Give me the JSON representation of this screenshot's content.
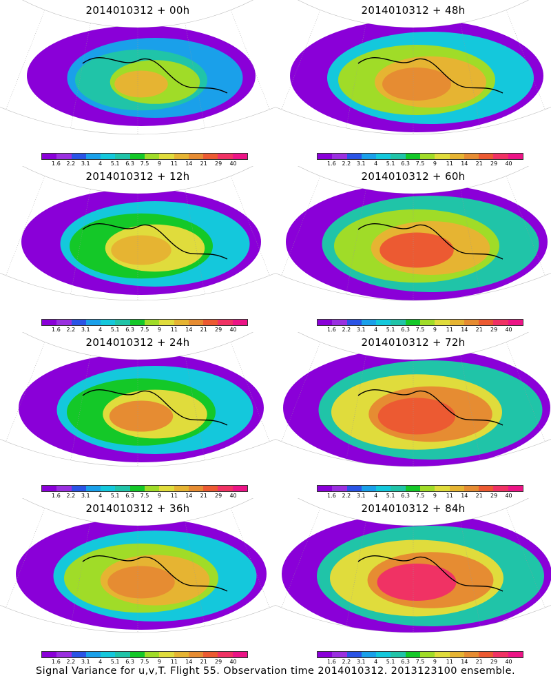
{
  "panels": [
    {
      "title": "2014010312 + 00h",
      "intensity": 0.15
    },
    {
      "title": "2014010312 + 48h",
      "intensity": 0.6
    },
    {
      "title": "2014010312 + 12h",
      "intensity": 0.35
    },
    {
      "title": "2014010312 + 60h",
      "intensity": 0.75
    },
    {
      "title": "2014010312 + 24h",
      "intensity": 0.45
    },
    {
      "title": "2014010312 + 72h",
      "intensity": 0.85
    },
    {
      "title": "2014010312 + 36h",
      "intensity": 0.55
    },
    {
      "title": "2014010312 + 84h",
      "intensity": 0.9
    }
  ],
  "colorbar": {
    "labels": [
      "1.6",
      "2.2",
      "3.1",
      "4",
      "5.1",
      "6.3",
      "7.5",
      "9",
      "11",
      "14",
      "21",
      "29",
      "40"
    ],
    "colors": [
      "#8a00d8",
      "#9a30e0",
      "#2a54e6",
      "#1aa0ea",
      "#14c8dc",
      "#20c4a8",
      "#14c828",
      "#a0dc28",
      "#e0dc3c",
      "#e6b432",
      "#e68c32",
      "#ec5a32",
      "#f03264",
      "#ec1486"
    ]
  },
  "footer": "Signal Variance for u,v,T. Flight 55. Observation time 2014010312. 2013123100 ensemble."
}
